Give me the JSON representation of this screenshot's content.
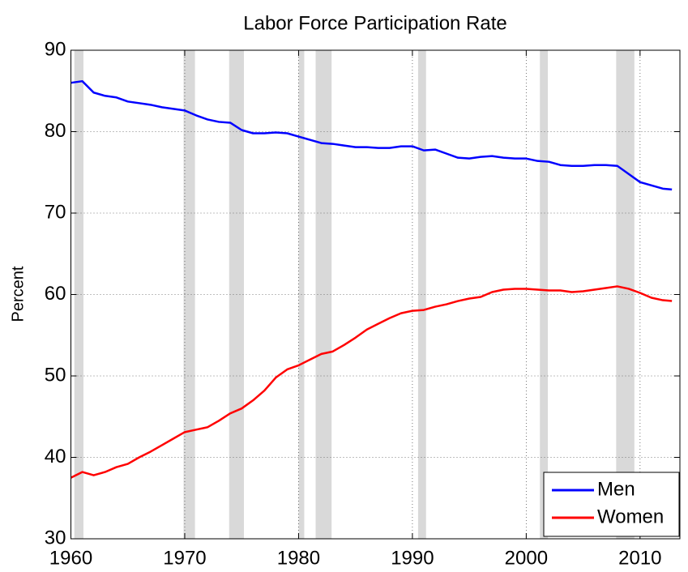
{
  "chart_data": {
    "type": "line",
    "title": "Labor Force Participation Rate",
    "y_label": "Percent",
    "x": [
      1960,
      1961,
      1962,
      1963,
      1964,
      1965,
      1966,
      1967,
      1968,
      1969,
      1970,
      1971,
      1972,
      1973,
      1974,
      1975,
      1976,
      1977,
      1978,
      1979,
      1980,
      1981,
      1982,
      1983,
      1984,
      1985,
      1986,
      1987,
      1988,
      1989,
      1990,
      1991,
      1992,
      1993,
      1994,
      1995,
      1996,
      1997,
      1998,
      1999,
      2000,
      2001,
      2002,
      2003,
      2004,
      2005,
      2006,
      2007,
      2008,
      2009,
      2010,
      2011,
      2012,
      2012.8
    ],
    "series": [
      {
        "name": "Men",
        "color": "#0000ff",
        "values": [
          86,
          86.2,
          84.8,
          84.4,
          84.2,
          83.7,
          83.5,
          83.3,
          83,
          82.8,
          82.6,
          82,
          81.5,
          81.2,
          81.1,
          80.2,
          79.8,
          79.8,
          79.9,
          79.8,
          79.4,
          79,
          78.6,
          78.5,
          78.3,
          78.1,
          78.1,
          78,
          78,
          78.2,
          78.2,
          77.7,
          77.8,
          77.3,
          76.8,
          76.7,
          76.9,
          77,
          76.8,
          76.7,
          76.7,
          76.4,
          76.3,
          75.9,
          75.8,
          75.8,
          75.9,
          75.9,
          75.8,
          74.8,
          73.8,
          73.4,
          73,
          72.9
        ]
      },
      {
        "name": "Women",
        "color": "#ff0000",
        "values": [
          37.5,
          38.2,
          37.8,
          38.2,
          38.8,
          39.2,
          40,
          40.7,
          41.5,
          42.3,
          43.1,
          43.4,
          43.7,
          44.5,
          45.4,
          46,
          47,
          48.2,
          49.8,
          50.8,
          51.3,
          52,
          52.7,
          53,
          53.8,
          54.7,
          55.7,
          56.4,
          57.1,
          57.7,
          58,
          58.1,
          58.5,
          58.8,
          59.2,
          59.5,
          59.7,
          60.3,
          60.6,
          60.7,
          60.7,
          60.6,
          60.5,
          60.5,
          60.3,
          60.4,
          60.6,
          60.8,
          61,
          60.7,
          60.2,
          59.6,
          59.3,
          59.2
        ]
      }
    ],
    "recessions": [
      [
        1960.3,
        1961.1
      ],
      [
        1969.9,
        1970.9
      ],
      [
        1973.9,
        1975.2
      ],
      [
        1980.0,
        1980.5
      ],
      [
        1981.5,
        1982.9
      ],
      [
        1990.5,
        1991.2
      ],
      [
        2001.2,
        2001.9
      ],
      [
        2007.9,
        2009.5
      ]
    ],
    "recession_color": "#d9d9d9",
    "xlim": [
      1960,
      2013.5
    ],
    "xticks": [
      1960,
      1970,
      1980,
      1990,
      2000,
      2010
    ],
    "ylim": [
      30,
      90
    ],
    "yticks": [
      30,
      40,
      50,
      60,
      70,
      80,
      90
    ],
    "grid": true,
    "legend": "lower right"
  }
}
